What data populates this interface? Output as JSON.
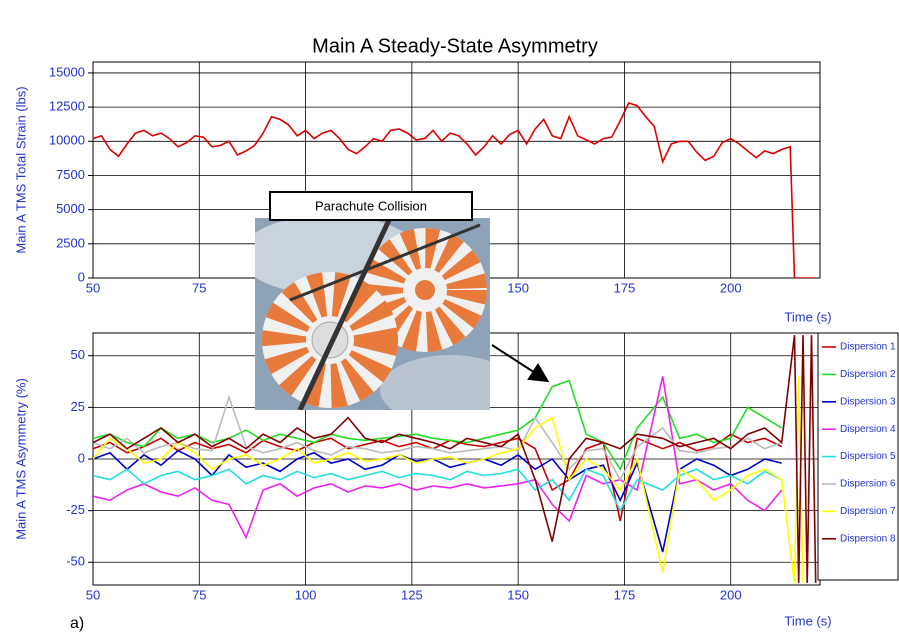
{
  "chart_data": [
    {
      "type": "line",
      "title": "Main A Steady-State Asymmetry",
      "ylabel": "Main A TMS Total Strain (lbs)",
      "xlabel": "Time (s)",
      "x": [
        50,
        52,
        54,
        56,
        58,
        60,
        62,
        64,
        66,
        68,
        70,
        72,
        74,
        76,
        78,
        80,
        82,
        84,
        86,
        88,
        90,
        92,
        94,
        96,
        98,
        100,
        102,
        104,
        106,
        108,
        110,
        112,
        114,
        116,
        118,
        120,
        122,
        124,
        126,
        128,
        130,
        132,
        134,
        136,
        138,
        140,
        142,
        144,
        146,
        148,
        150,
        152,
        154,
        156,
        158,
        160,
        162,
        164,
        166,
        168,
        170,
        172,
        174,
        176,
        178,
        180,
        182,
        184,
        186,
        188,
        190,
        192,
        194,
        196,
        198,
        200,
        202,
        204,
        206,
        208,
        210,
        212,
        214,
        215,
        220
      ],
      "values": [
        10200,
        10400,
        9400,
        8900,
        9800,
        10600,
        10800,
        10400,
        10600,
        10200,
        9600,
        9900,
        10400,
        10300,
        9600,
        9700,
        10000,
        9000,
        9300,
        9700,
        10600,
        11800,
        11600,
        11200,
        10400,
        10800,
        10200,
        10600,
        10800,
        10200,
        9400,
        9100,
        9600,
        10200,
        10000,
        10800,
        10900,
        10600,
        10100,
        10200,
        10800,
        10000,
        10600,
        10400,
        9800,
        9000,
        9600,
        10400,
        9800,
        10500,
        10800,
        9800,
        10900,
        11600,
        10400,
        10200,
        11800,
        10400,
        10100,
        9800,
        10200,
        10300,
        11500,
        12800,
        12600,
        11800,
        11100,
        8500,
        9800,
        10000,
        10000,
        9200,
        8600,
        8900,
        9900,
        10200,
        9800,
        9300,
        8800,
        9300,
        9100,
        9400,
        9600,
        0,
        0
      ],
      "color": "#dd0000",
      "xlim": [
        50,
        221
      ],
      "ylim": [
        0,
        15800
      ],
      "xticks": [
        50,
        75,
        100,
        125,
        150,
        175,
        200
      ],
      "yticks": [
        0,
        2500,
        5000,
        7500,
        10000,
        12500,
        15000
      ],
      "grid": true
    },
    {
      "type": "line",
      "ylabel": "Main A TMS Asymmetry (%)",
      "xlabel": "Time (s)",
      "annotation": "Parachute Collision",
      "x": [
        50,
        54,
        58,
        62,
        66,
        70,
        74,
        78,
        82,
        86,
        90,
        94,
        98,
        102,
        106,
        110,
        114,
        118,
        122,
        126,
        130,
        134,
        138,
        142,
        146,
        150,
        154,
        158,
        162,
        166,
        170,
        174,
        178,
        184,
        188,
        192,
        196,
        200,
        204,
        208,
        212,
        215,
        216,
        217,
        218,
        219,
        220
      ],
      "series": [
        {
          "name": "Dispersion 1",
          "color": "#cc0000",
          "values": [
            5,
            8,
            3,
            6,
            10,
            4,
            8,
            5,
            7,
            3,
            9,
            6,
            4,
            8,
            10,
            5,
            7,
            9,
            6,
            8,
            5,
            9,
            7,
            6,
            8,
            10,
            5,
            -15,
            -10,
            5,
            8,
            -30,
            10,
            5,
            8,
            4,
            6,
            12,
            8,
            10,
            6,
            null,
            null,
            null,
            null,
            null,
            null
          ]
        },
        {
          "name": "Dispersion 2",
          "color": "#22dd22",
          "values": [
            10,
            12,
            8,
            6,
            15,
            10,
            12,
            8,
            10,
            14,
            9,
            12,
            10,
            8,
            12,
            10,
            9,
            10,
            11,
            12,
            10,
            9,
            8,
            10,
            12,
            14,
            20,
            35,
            38,
            12,
            8,
            -5,
            15,
            30,
            10,
            12,
            8,
            10,
            25,
            20,
            15,
            null,
            null,
            null,
            null,
            null,
            null
          ]
        },
        {
          "name": "Dispersion 3",
          "color": "#0000cc",
          "values": [
            0,
            3,
            -5,
            2,
            -3,
            4,
            0,
            -8,
            2,
            -4,
            -2,
            -6,
            0,
            3,
            -2,
            0,
            -5,
            -3,
            2,
            -1,
            0,
            -4,
            -2,
            0,
            -3,
            2,
            -5,
            0,
            -10,
            -5,
            -3,
            -20,
            -2,
            -45,
            -5,
            0,
            -3,
            -8,
            -5,
            0,
            -2,
            null,
            null,
            null,
            null,
            null,
            null
          ]
        },
        {
          "name": "Dispersion 4",
          "color": "#ee22ee",
          "values": [
            -18,
            -20,
            -15,
            -12,
            -16,
            -18,
            -14,
            -20,
            -22,
            -38,
            -15,
            -12,
            -18,
            -14,
            -12,
            -16,
            -13,
            -14,
            -12,
            -15,
            -13,
            -14,
            -12,
            -14,
            -13,
            -12,
            -10,
            -22,
            -30,
            -8,
            -12,
            -10,
            -15,
            40,
            -12,
            -10,
            -15,
            -12,
            -20,
            -25,
            -15,
            null,
            null,
            null,
            null,
            null,
            null
          ]
        },
        {
          "name": "Dispersion 5",
          "color": "#22dddd",
          "values": [
            -8,
            -10,
            -5,
            -12,
            -8,
            -6,
            -10,
            -8,
            -5,
            -12,
            -8,
            -10,
            -6,
            -9,
            -7,
            -10,
            -8,
            -6,
            -9,
            -7,
            -8,
            -10,
            -6,
            -8,
            -7,
            -5,
            -15,
            -10,
            -20,
            -5,
            -8,
            -25,
            -10,
            -15,
            -8,
            -5,
            -10,
            -8,
            -12,
            -6,
            -10,
            null,
            null,
            null,
            null,
            null,
            null
          ]
        },
        {
          "name": "Dispersion 6",
          "color": "#bbbbbb",
          "values": [
            8,
            5,
            10,
            3,
            6,
            8,
            5,
            4,
            30,
            6,
            3,
            5,
            8,
            4,
            2,
            6,
            5,
            3,
            4,
            6,
            5,
            3,
            4,
            5,
            6,
            4,
            20,
            8,
            -5,
            4,
            5,
            -10,
            6,
            15,
            4,
            3,
            5,
            6,
            10,
            5,
            8,
            null,
            null,
            null,
            null,
            null,
            null
          ]
        },
        {
          "name": "Dispersion 7",
          "color": "#ffff00",
          "values": [
            0,
            10,
            5,
            -2,
            0,
            8,
            3,
            -5,
            0,
            2,
            -3,
            0,
            5,
            -2,
            0,
            3,
            -1,
            0,
            2,
            -2,
            0,
            1,
            -2,
            0,
            3,
            5,
            15,
            20,
            -10,
            0,
            -5,
            -15,
            0,
            -55,
            -5,
            -10,
            -20,
            -15,
            -8,
            -5,
            -10,
            -60,
            40,
            -60,
            null,
            null,
            null
          ]
        },
        {
          "name": "Dispersion 8",
          "color": "#800000",
          "values": [
            8,
            12,
            5,
            10,
            15,
            8,
            12,
            6,
            10,
            5,
            12,
            8,
            15,
            10,
            12,
            20,
            10,
            8,
            12,
            10,
            8,
            5,
            10,
            8,
            6,
            12,
            -10,
            -40,
            0,
            10,
            8,
            5,
            12,
            10,
            6,
            8,
            10,
            5,
            12,
            15,
            8,
            60,
            -60,
            60,
            -60,
            60,
            -60
          ]
        }
      ],
      "xlim": [
        50,
        221
      ],
      "ylim": [
        -61,
        61
      ],
      "xticks": [
        50,
        75,
        100,
        125,
        150,
        175,
        200
      ],
      "yticks": [
        -50,
        -25,
        0,
        25,
        50
      ],
      "grid": true,
      "legend": "right"
    }
  ],
  "caption": "a)"
}
